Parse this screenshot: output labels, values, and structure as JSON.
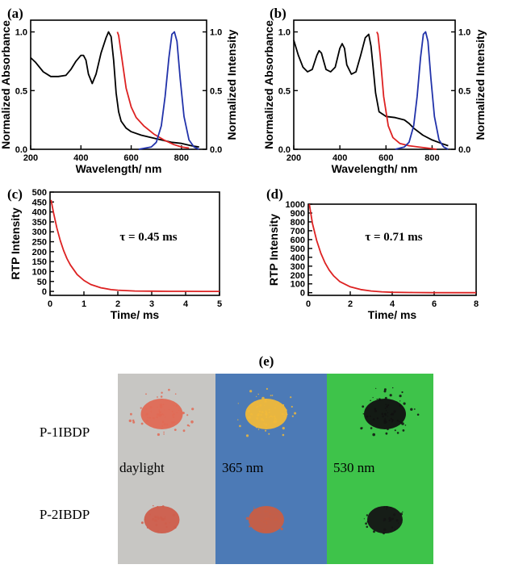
{
  "chart_data": [
    {
      "panel": "(a)",
      "type": "line",
      "xlabel": "Wavelength/ nm",
      "ylabel_left": "Normalized Absorbance",
      "ylabel_right": "Normalized Intensity",
      "xlim": [
        200,
        900
      ],
      "ylim": [
        0,
        1.1
      ],
      "x_ticks": [
        "200",
        "400",
        "600",
        "800"
      ],
      "y_ticks_left": [
        "0.0",
        "0.5",
        "1.0"
      ],
      "y_ticks_right": [
        "0.0",
        "0.5",
        "1.0"
      ],
      "series": [
        {
          "color": "#000000",
          "x": [
            200,
            220,
            250,
            280,
            310,
            340,
            360,
            380,
            400,
            410,
            420,
            430,
            445,
            460,
            480,
            500,
            510,
            520,
            530,
            540,
            550,
            560,
            580,
            600,
            640,
            680,
            720,
            760,
            800,
            840,
            870
          ],
          "y": [
            0.78,
            0.74,
            0.66,
            0.62,
            0.62,
            0.63,
            0.68,
            0.75,
            0.8,
            0.8,
            0.76,
            0.64,
            0.56,
            0.64,
            0.82,
            0.95,
            1.0,
            0.96,
            0.76,
            0.48,
            0.32,
            0.24,
            0.18,
            0.15,
            0.12,
            0.1,
            0.08,
            0.06,
            0.05,
            0.03,
            0.02
          ]
        },
        {
          "color": "#dd2222",
          "x": [
            545,
            550,
            560,
            580,
            600,
            620,
            650,
            690,
            730,
            770,
            800,
            830
          ],
          "y": [
            1.0,
            0.97,
            0.82,
            0.52,
            0.36,
            0.27,
            0.2,
            0.13,
            0.08,
            0.04,
            0.02,
            0.01
          ]
        },
        {
          "color": "#2233aa",
          "x": [
            630,
            680,
            700,
            720,
            735,
            750,
            762,
            772,
            782,
            795,
            810,
            830,
            850,
            870
          ],
          "y": [
            0.0,
            0.02,
            0.06,
            0.2,
            0.45,
            0.78,
            0.98,
            1.0,
            0.92,
            0.6,
            0.28,
            0.08,
            0.02,
            0.0
          ]
        }
      ]
    },
    {
      "panel": "(b)",
      "type": "line",
      "xlabel": "Wavelength/ nm",
      "ylabel_left": "Normalized Absorbance",
      "ylabel_right": "Normalized Intensity",
      "xlim": [
        200,
        900
      ],
      "ylim": [
        0,
        1.1
      ],
      "x_ticks": [
        "200",
        "400",
        "600",
        "800"
      ],
      "y_ticks_left": [
        "0.0",
        "0.5",
        "1.0"
      ],
      "y_ticks_right": [
        "0.0",
        "0.5",
        "1.0"
      ],
      "series": [
        {
          "color": "#000000",
          "x": [
            200,
            220,
            240,
            260,
            280,
            300,
            310,
            320,
            330,
            340,
            360,
            380,
            400,
            410,
            420,
            430,
            450,
            470,
            490,
            510,
            525,
            535,
            545,
            555,
            570,
            600,
            640,
            680,
            700,
            720,
            760,
            800,
            840,
            870
          ],
          "y": [
            0.93,
            0.8,
            0.7,
            0.66,
            0.68,
            0.8,
            0.84,
            0.82,
            0.75,
            0.68,
            0.66,
            0.7,
            0.86,
            0.9,
            0.86,
            0.72,
            0.64,
            0.66,
            0.8,
            0.95,
            0.98,
            0.88,
            0.68,
            0.48,
            0.32,
            0.28,
            0.27,
            0.25,
            0.22,
            0.18,
            0.12,
            0.08,
            0.05,
            0.03
          ]
        },
        {
          "color": "#dd2222",
          "x": [
            560,
            565,
            575,
            590,
            610,
            630,
            660,
            700,
            740,
            780,
            820
          ],
          "y": [
            1.0,
            0.98,
            0.8,
            0.45,
            0.2,
            0.1,
            0.05,
            0.03,
            0.02,
            0.01,
            0.0
          ]
        },
        {
          "color": "#2233aa",
          "x": [
            640,
            680,
            700,
            720,
            735,
            750,
            762,
            772,
            782,
            795,
            810,
            830,
            850,
            870
          ],
          "y": [
            0.0,
            0.02,
            0.06,
            0.2,
            0.45,
            0.78,
            0.98,
            1.0,
            0.92,
            0.6,
            0.28,
            0.08,
            0.02,
            0.0
          ]
        }
      ]
    },
    {
      "panel": "(c)",
      "type": "line",
      "xlabel": "Time/ ms",
      "ylabel": "RTP Intensity",
      "xlim": [
        0,
        5
      ],
      "ylim": [
        -20,
        500
      ],
      "x_ticks": [
        "0",
        "1",
        "2",
        "3",
        "4",
        "5"
      ],
      "y_ticks": [
        "0",
        "50",
        "100",
        "150",
        "200",
        "250",
        "300",
        "350",
        "400",
        "450",
        "500"
      ],
      "annotation": "τ = 0.45 ms",
      "series": [
        {
          "color": "#dd2222",
          "x": [
            0.03,
            0.1,
            0.2,
            0.3,
            0.4,
            0.5,
            0.6,
            0.8,
            1.0,
            1.2,
            1.5,
            1.8,
            2.0,
            2.5,
            3.0,
            3.5,
            4.0,
            4.5,
            5.0
          ],
          "y": [
            460,
            398,
            320,
            257,
            206,
            165,
            133,
            85,
            55,
            35,
            18,
            9,
            6,
            2,
            1,
            0.4,
            0.2,
            0.1,
            0.05
          ]
        }
      ]
    },
    {
      "panel": "(d)",
      "type": "line",
      "xlabel": "Time/ ms",
      "ylabel": "RTP Intensity",
      "xlim": [
        0,
        8
      ],
      "ylim": [
        -30,
        1000
      ],
      "x_ticks": [
        "0",
        "2",
        "4",
        "6",
        "8"
      ],
      "y_ticks": [
        "0",
        "100",
        "200",
        "300",
        "400",
        "500",
        "600",
        "700",
        "800",
        "900",
        "1000"
      ],
      "annotation": "τ = 0.71 ms",
      "series": [
        {
          "color": "#dd2222",
          "x": [
            0.05,
            0.2,
            0.4,
            0.6,
            0.8,
            1.0,
            1.2,
            1.5,
            2.0,
            2.5,
            3.0,
            3.5,
            4.0,
            5.0,
            6.0,
            7.0,
            8.0
          ],
          "y": [
            1000,
            780,
            590,
            445,
            336,
            254,
            192,
            126,
            67,
            36,
            19,
            10,
            5,
            1.5,
            0.4,
            0.1,
            0.03
          ]
        }
      ]
    }
  ],
  "photo_panel": {
    "label": "(e)",
    "rows": [
      "P-1IBDP",
      "P-2IBDP"
    ],
    "columns": [
      "daylight",
      "365 nm",
      "530 nm"
    ],
    "background_colors": [
      "#c7c6c3",
      "#4c7ab6",
      "#3ec34a"
    ],
    "powder_colors_row1": [
      "#e06a55",
      "#f0b93a",
      "#111111"
    ],
    "powder_colors_row2": [
      "#cf5e4c",
      "#c85e44",
      "#141414"
    ]
  }
}
